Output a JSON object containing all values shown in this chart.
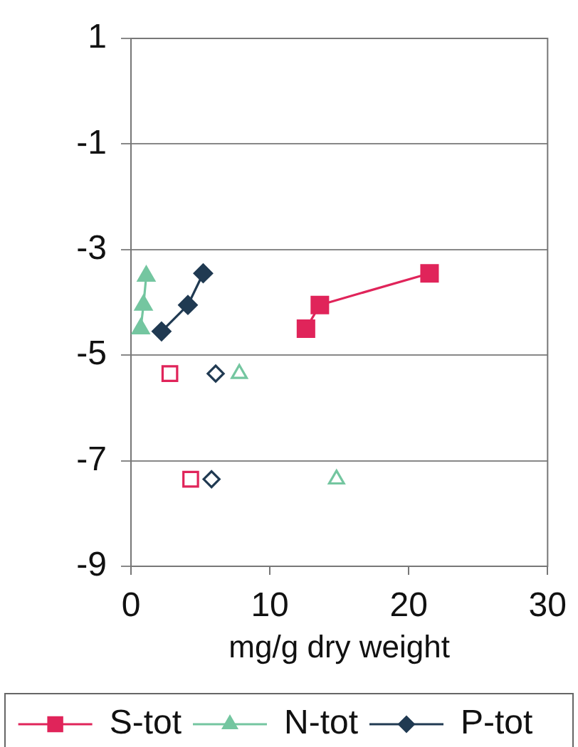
{
  "chart_data": {
    "type": "line",
    "xlabel": "mg/g dry weight",
    "xlim": [
      0,
      30
    ],
    "xticks": [
      0,
      10,
      20,
      30
    ],
    "ylim": [
      -9,
      1
    ],
    "yticks": [
      -9,
      -7,
      -5,
      -3,
      -1,
      1
    ],
    "grid": "y",
    "legend": "bottom",
    "line_style": "solid",
    "series": [
      {
        "name": "S-tot",
        "color": "#e0245a",
        "marker": "square",
        "x": [
          12.6,
          13.6,
          21.5
        ],
        "values": [
          -4.5,
          -4.05,
          -3.45
        ]
      },
      {
        "name": "N-tot",
        "color": "#74c6a0",
        "marker": "triangle",
        "x": [
          0.7,
          0.9,
          1.1
        ],
        "values": [
          -4.5,
          -4.05,
          -3.5
        ]
      },
      {
        "name": "P-tot",
        "color": "#203a52",
        "marker": "diamond",
        "x": [
          2.2,
          4.1,
          5.2
        ],
        "values": [
          -4.55,
          -4.05,
          -3.45
        ]
      },
      {
        "type": "scatter",
        "color": "#e0245a",
        "marker": "square",
        "x": [
          2.8,
          4.3
        ],
        "values": [
          -5.35,
          -7.35
        ]
      },
      {
        "type": "scatter",
        "color": "#74c6a0",
        "marker": "triangle",
        "x": [
          7.8,
          14.8
        ],
        "values": [
          -5.35,
          -7.35
        ]
      },
      {
        "type": "scatter",
        "color": "#203a52",
        "marker": "diamond",
        "x": [
          6.1,
          5.8
        ],
        "values": [
          -5.35,
          -7.35
        ]
      }
    ]
  }
}
